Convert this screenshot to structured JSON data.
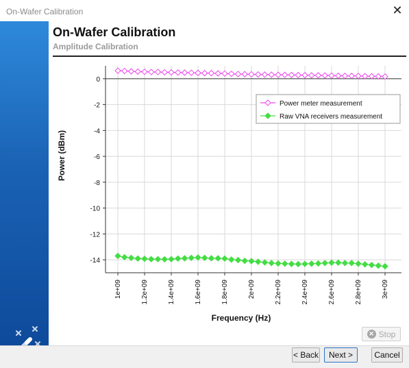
{
  "window": {
    "title": "On-Wafer Calibration",
    "close_glyph": "✕"
  },
  "header": {
    "title": "On-Wafer Calibration",
    "subtitle": "Amplitude Calibration"
  },
  "sidebar": {
    "icon": "magic-wand-icon"
  },
  "buttons": {
    "stop": "Stop",
    "back": "< Back",
    "next": "Next >",
    "cancel": "Cancel"
  },
  "colors": {
    "power_meter": "#ee44ee",
    "raw_vna": "#44dd44",
    "sidebar_top": "#2e89db",
    "sidebar_bottom": "#0e4a9b"
  },
  "chart_data": {
    "type": "line",
    "xlabel": "Frequency (Hz)",
    "ylabel": "Power (dBm)",
    "ylim": [
      -15,
      1
    ],
    "xlim": [
      1000000000.0,
      3000000000.0
    ],
    "grid": true,
    "legend": "top-right",
    "y_ticks": [
      "0",
      "-2",
      "-4",
      "-6",
      "-8",
      "-10",
      "-12",
      "-14"
    ],
    "y_tick_values": [
      0,
      -2,
      -4,
      -6,
      -8,
      -10,
      -12,
      -14
    ],
    "x_ticks": [
      "1e+09",
      "1.2e+09",
      "1.4e+09",
      "1.6e+09",
      "1.8e+09",
      "2e+09",
      "2.2e+09",
      "2.4e+09",
      "2.6e+09",
      "2.8e+09",
      "3e+09"
    ],
    "x_tick_values": [
      1000000000.0,
      1200000000.0,
      1400000000.0,
      1600000000.0,
      1800000000.0,
      2000000000.0,
      2200000000.0,
      2400000000.0,
      2600000000.0,
      2800000000.0,
      3000000000.0
    ],
    "x": [
      1000000000.0,
      1050000000.0,
      1100000000.0,
      1150000000.0,
      1200000000.0,
      1250000000.0,
      1300000000.0,
      1350000000.0,
      1400000000.0,
      1450000000.0,
      1500000000.0,
      1550000000.0,
      1600000000.0,
      1650000000.0,
      1700000000.0,
      1750000000.0,
      1800000000.0,
      1850000000.0,
      1900000000.0,
      1950000000.0,
      2000000000.0,
      2050000000.0,
      2100000000.0,
      2150000000.0,
      2200000000.0,
      2250000000.0,
      2300000000.0,
      2350000000.0,
      2400000000.0,
      2450000000.0,
      2500000000.0,
      2550000000.0,
      2600000000.0,
      2650000000.0,
      2700000000.0,
      2750000000.0,
      2800000000.0,
      2850000000.0,
      2900000000.0,
      2950000000.0,
      3000000000.0
    ],
    "series": [
      {
        "name": "Power meter measurement",
        "values": [
          0.62,
          0.6,
          0.57,
          0.55,
          0.54,
          0.52,
          0.52,
          0.5,
          0.49,
          0.48,
          0.47,
          0.46,
          0.45,
          0.43,
          0.43,
          0.41,
          0.4,
          0.38,
          0.36,
          0.35,
          0.34,
          0.33,
          0.32,
          0.31,
          0.3,
          0.3,
          0.29,
          0.28,
          0.27,
          0.26,
          0.26,
          0.25,
          0.24,
          0.23,
          0.22,
          0.22,
          0.21,
          0.2,
          0.19,
          0.18,
          0.17
        ]
      },
      {
        "name": "Raw VNA receivers measurement",
        "values": [
          -13.7,
          -13.8,
          -13.85,
          -13.9,
          -13.92,
          -13.95,
          -13.95,
          -13.96,
          -13.95,
          -13.9,
          -13.88,
          -13.85,
          -13.82,
          -13.85,
          -13.88,
          -13.88,
          -13.9,
          -13.98,
          -14.02,
          -14.08,
          -14.1,
          -14.15,
          -14.2,
          -14.25,
          -14.28,
          -14.3,
          -14.32,
          -14.33,
          -14.32,
          -14.3,
          -14.28,
          -14.25,
          -14.22,
          -14.22,
          -14.25,
          -14.25,
          -14.3,
          -14.35,
          -14.4,
          -14.45,
          -14.5
        ]
      }
    ]
  }
}
